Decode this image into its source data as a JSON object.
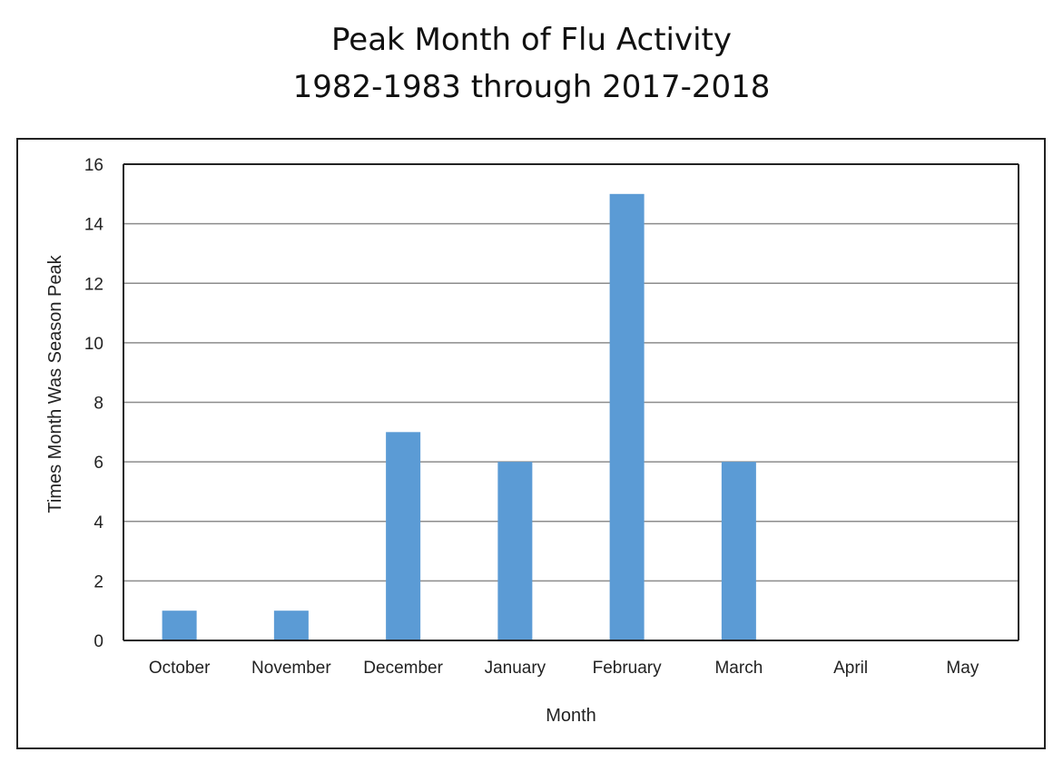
{
  "chart_data": {
    "type": "bar",
    "title": "Peak Month of Flu Activity",
    "subtitle": "1982-1983 through 2017-2018",
    "xlabel": "Month",
    "ylabel": "Times Month Was Season Peak",
    "categories": [
      "October",
      "November",
      "December",
      "January",
      "February",
      "March",
      "April",
      "May"
    ],
    "values": [
      1,
      1,
      7,
      6,
      15,
      6,
      0,
      0
    ],
    "ylim": [
      0,
      16
    ],
    "yticks": [
      0,
      2,
      4,
      6,
      8,
      10,
      12,
      14,
      16
    ],
    "grid": true,
    "legend": "none",
    "bar_color": "#5B9BD5",
    "grid_color": "#8c8c8c",
    "axis_color": "#222222"
  }
}
